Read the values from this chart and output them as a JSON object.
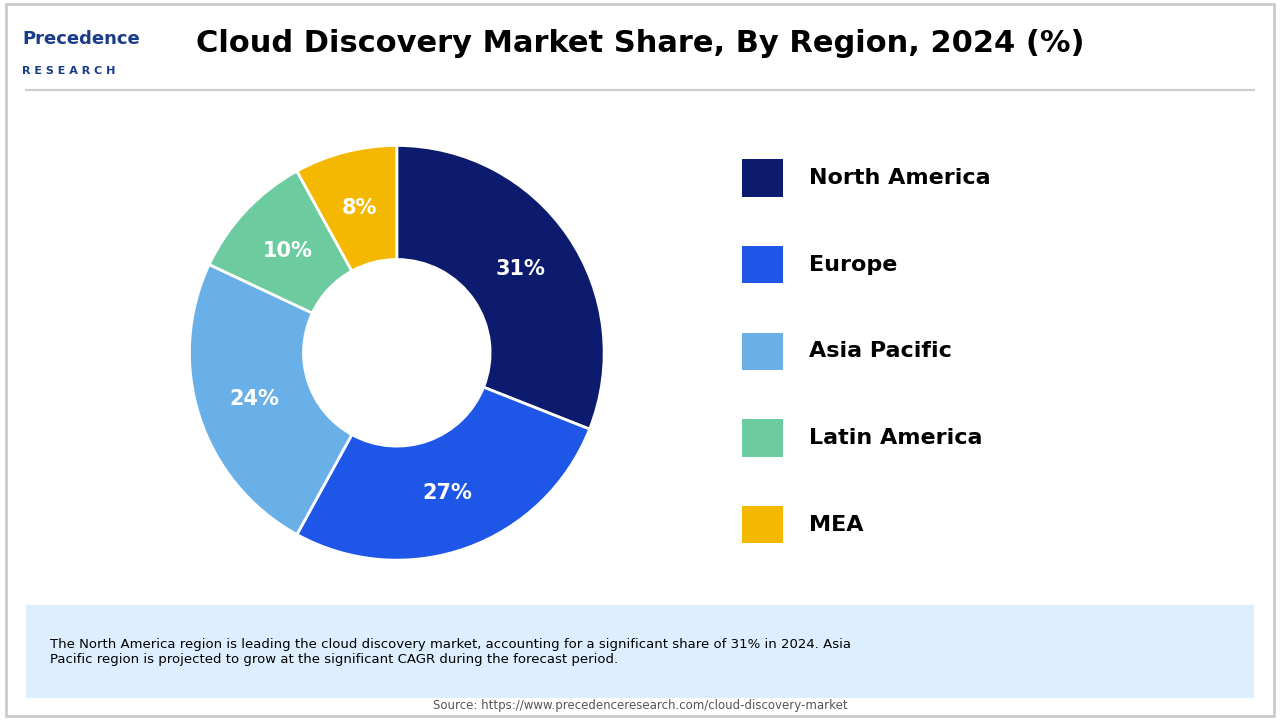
{
  "title": "Cloud Discovery Market Share, By Region, 2024 (%)",
  "segments": [
    "North America",
    "Europe",
    "Asia Pacific",
    "Latin America",
    "MEA"
  ],
  "values": [
    31,
    27,
    24,
    10,
    8
  ],
  "colors": [
    "#0d1b6e",
    "#1e56e8",
    "#6ab0e8",
    "#6dcba0",
    "#f5b800"
  ],
  "labels": [
    "31%",
    "27%",
    "24%",
    "10%",
    "8%"
  ],
  "background_color": "#ffffff",
  "title_fontsize": 22,
  "legend_fontsize": 16,
  "label_fontsize": 15,
  "footer_text": "The North America region is leading the cloud discovery market, accounting for a significant share of 31% in 2024. Asia\nPacific region is projected to grow at the significant CAGR during the forecast period.",
  "footer_bg_color": "#ddeeff",
  "source_text": "Source: https://www.precedenceresearch.com/cloud-discovery-market",
  "separator_color": "#cccccc",
  "border_color": "#cccccc",
  "logo_main": "Precedence",
  "logo_sub": "R E S E A R C H",
  "logo_color": "#1a3a8a"
}
